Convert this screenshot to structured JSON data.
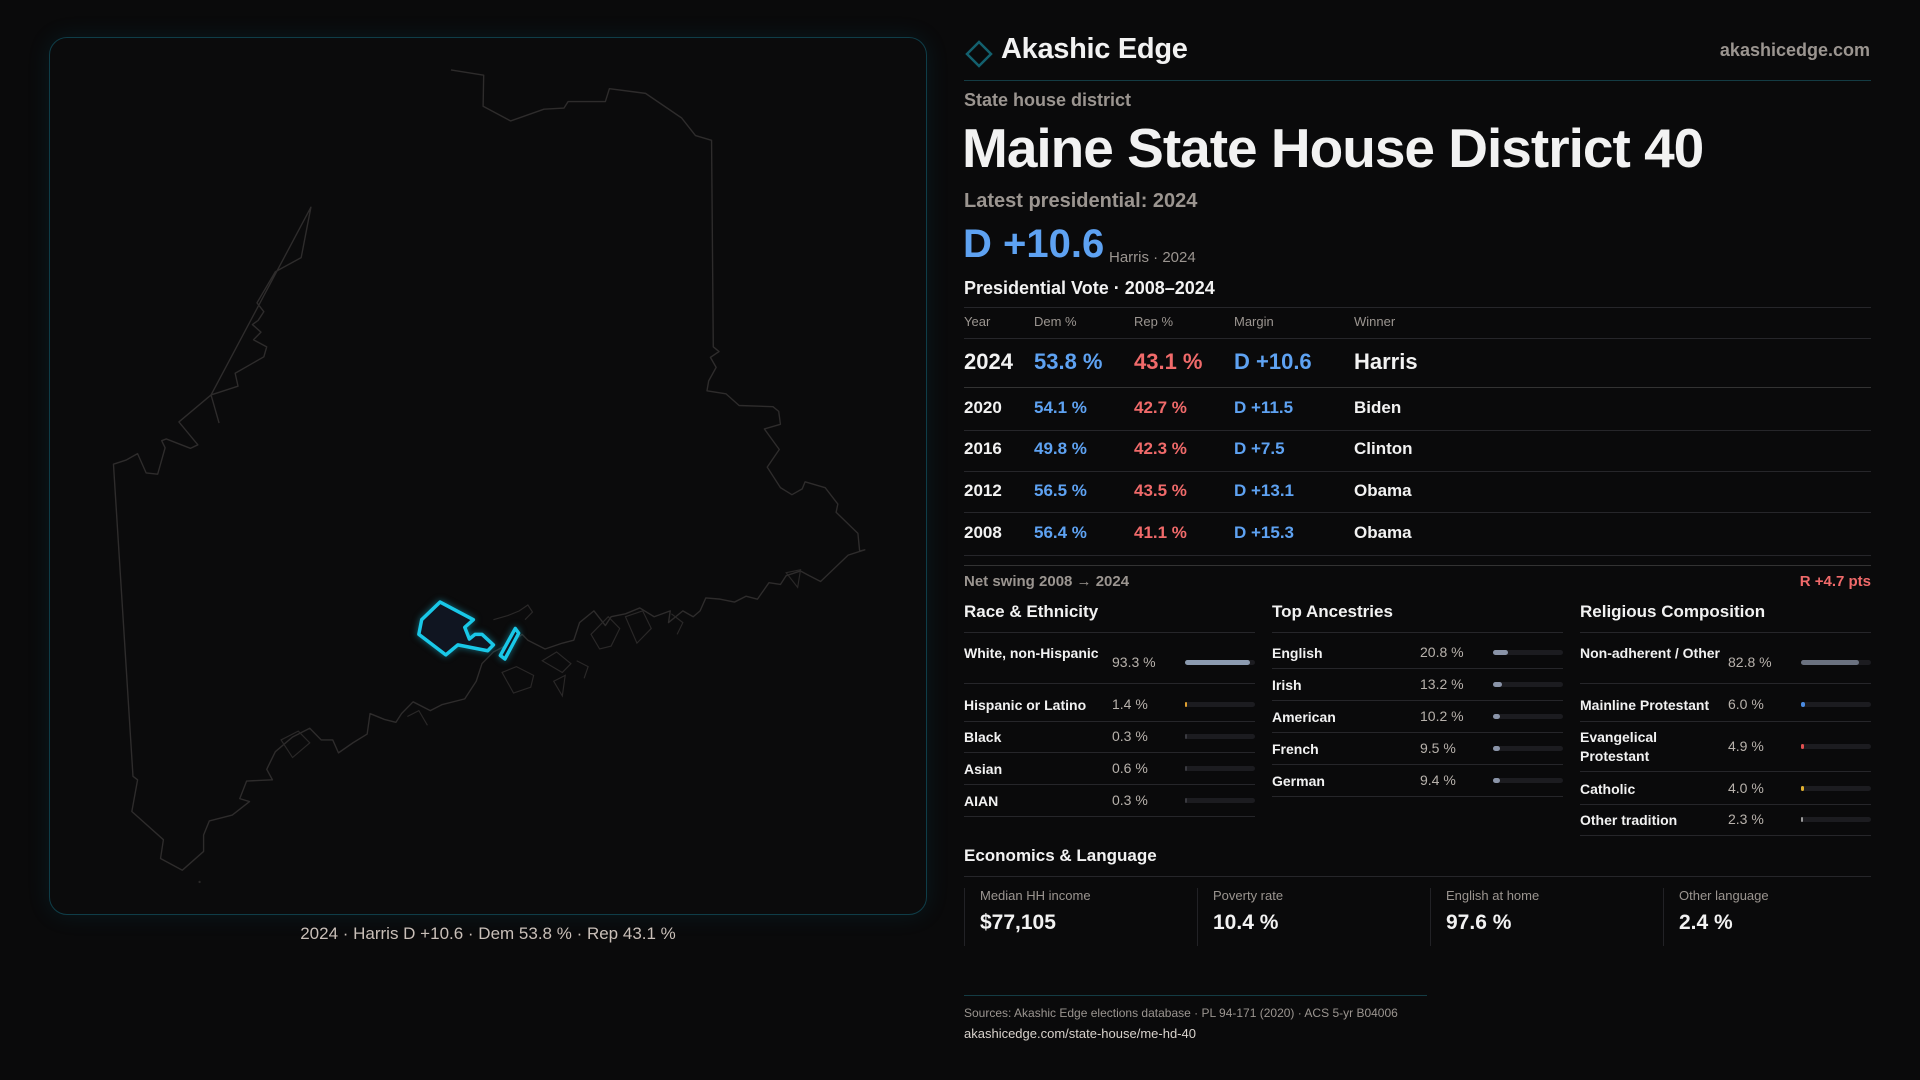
{
  "brand": {
    "name": "Akashic Edge",
    "site": "akashicedge.com",
    "accent": "#1a6b7a"
  },
  "header": {
    "kicker": "State house district",
    "title": "Maine State House District 40",
    "latest": "Latest presidential: 2024",
    "margin": "D +10.6",
    "margin_sub": "Harris · 2024"
  },
  "map": {
    "caption": "2024 · Harris D +10.6 · Dem 53.8 % · Rep 43.1 %",
    "highlight_color": "#19c8e8"
  },
  "table": {
    "title": "Presidential Vote · 2008–2024",
    "columns": [
      "Year",
      "Dem %",
      "Rep %",
      "Margin",
      "Winner"
    ],
    "rows": [
      [
        "2024",
        "53.8 %",
        "43.1 %",
        "D +10.6",
        "Harris"
      ],
      [
        "2020",
        "54.1 %",
        "42.7 %",
        "D +11.5",
        "Biden"
      ],
      [
        "2016",
        "49.8 %",
        "42.3 %",
        "D +7.5",
        "Clinton"
      ],
      [
        "2012",
        "56.5 %",
        "43.5 %",
        "D +13.1",
        "Obama"
      ],
      [
        "2008",
        "56.4 %",
        "41.1 %",
        "D +15.3",
        "Obama"
      ]
    ],
    "swing_label": "Net swing 2008 → 2024",
    "swing_value": "R +4.7 pts"
  },
  "race": {
    "title": "Race & Ethnicity",
    "items": [
      {
        "label": "White, non-Hispanic",
        "value": "93.3 %",
        "pct": 93.3,
        "color": "#8c9bb0"
      },
      {
        "label": "Hispanic or Latino",
        "value": "1.4 %",
        "pct": 1.4,
        "color": "#e0a030"
      },
      {
        "label": "Black",
        "value": "0.3 %",
        "pct": 0.3,
        "color": "#3a3a40"
      },
      {
        "label": "Asian",
        "value": "0.6 %",
        "pct": 0.6,
        "color": "#3a3a40"
      },
      {
        "label": "AIAN",
        "value": "0.3 %",
        "pct": 0.3,
        "color": "#3a3a40"
      }
    ]
  },
  "ancestry": {
    "title": "Top Ancestries",
    "items": [
      {
        "label": "English",
        "value": "20.8 %",
        "pct": 20.8,
        "color": "#8a94a8"
      },
      {
        "label": "Irish",
        "value": "13.2 %",
        "pct": 13.2,
        "color": "#8a94a8"
      },
      {
        "label": "American",
        "value": "10.2 %",
        "pct": 10.2,
        "color": "#8a94a8"
      },
      {
        "label": "French",
        "value": "9.5 %",
        "pct": 9.5,
        "color": "#8a94a8"
      },
      {
        "label": "German",
        "value": "9.4 %",
        "pct": 9.4,
        "color": "#8a94a8"
      }
    ]
  },
  "religion": {
    "title": "Religious Composition",
    "items": [
      {
        "label": "Non-adherent / Other",
        "value": "82.8 %",
        "pct": 82.8,
        "color": "#6b7280"
      },
      {
        "label": "Mainline Protestant",
        "value": "6.0 %",
        "pct": 6.0,
        "color": "#4a8ae0"
      },
      {
        "label": "Evangelical Protestant",
        "value": "4.9 %",
        "pct": 4.9,
        "color": "#e05050"
      },
      {
        "label": "Catholic",
        "value": "4.0 %",
        "pct": 4.0,
        "color": "#e0b030"
      },
      {
        "label": "Other tradition",
        "value": "2.3 %",
        "pct": 2.3,
        "color": "#9a9a9a"
      }
    ]
  },
  "economics": {
    "title": "Economics & Language",
    "stats": [
      {
        "label": "Median HH income",
        "value": "$77,105"
      },
      {
        "label": "Poverty rate",
        "value": "10.4 %"
      },
      {
        "label": "English at home",
        "value": "97.6 %"
      },
      {
        "label": "Other language",
        "value": "2.4 %"
      }
    ]
  },
  "footer": {
    "sources": "Sources: Akashic Edge elections database · PL 94-171 (2020) · ACS 5-yr B04006",
    "url": "akashicedge.com/state-house/me-hd-40"
  }
}
